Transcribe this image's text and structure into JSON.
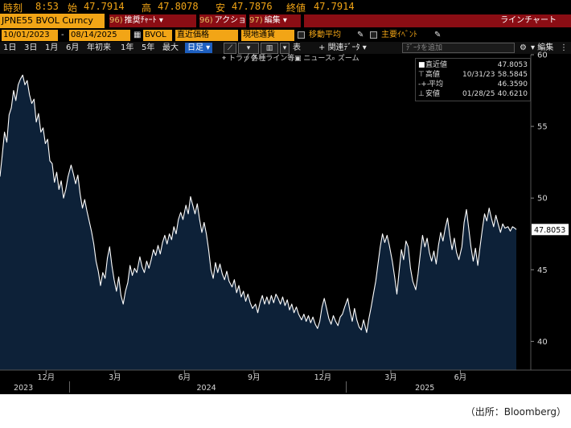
{
  "header": {
    "time_label": "時刻",
    "time_value": "8:53",
    "open_label": "始",
    "open_value": "47.7914",
    "high_label": "高",
    "high_value": "47.8078",
    "low_label": "安",
    "low_value": "47.7876",
    "close_label": "終値",
    "close_value": "47.7914"
  },
  "toolbar": {
    "ticker": "JPNE55 BVOL Curncy",
    "menu1_num": "96)",
    "menu1_label": "推奨ﾁｬｰﾄ",
    "menu2_num": "96)",
    "menu2_label": "アクション",
    "menu3_num": "97)",
    "menu3_label": "編集",
    "chart_type": "ラインチャート"
  },
  "params": {
    "start_date": "10/01/2023",
    "end_date": "08/14/2025",
    "security": "BVOL",
    "price_field": "直近価格",
    "currency": "現地通貨",
    "moving_avg": "移動平均",
    "events": "主要ｲﾍﾞﾝﾄ"
  },
  "periods": {
    "items": [
      "1日",
      "3日",
      "1月",
      "6月",
      "年初来",
      "1年",
      "5年",
      "最大"
    ],
    "frequency": "日足",
    "table_label": "表",
    "related_data": "関連ﾃﾞｰﾀ",
    "add_data": "ﾃﾞｰﾀを追加",
    "edit": "編集"
  },
  "subtools": {
    "track": "トラック",
    "lines": "各種ライン等",
    "news": "ニュース",
    "zoom": "ズーム"
  },
  "legend": {
    "last_label": "直近値",
    "last_value": "47.8053",
    "high_label": "高値",
    "high_date": "10/31/23",
    "high_value": "58.5845",
    "avg_label": "平均",
    "avg_value": "46.3590",
    "low_label": "安値",
    "low_date": "01/28/25",
    "low_value": "40.6210"
  },
  "source": "（出所：Bloomberg）",
  "colors": {
    "background": "#000000",
    "fill": "#0d2138",
    "line": "#ffffff",
    "accent": "#f2a516",
    "menu": "#8b0d14"
  },
  "chart_data": {
    "type": "area",
    "title": "",
    "xlabel": "",
    "ylabel": "",
    "ylim": [
      38,
      60
    ],
    "yticks": [
      40,
      45,
      50,
      55,
      60
    ],
    "last_value_label": "47.8053",
    "x_month_labels": [
      "12月",
      "3月",
      "6月",
      "9月",
      "12月",
      "3月",
      "6月"
    ],
    "x_month_dates": [
      "2023-12-01",
      "2024-03-01",
      "2024-06-01",
      "2024-09-01",
      "2024-12-01",
      "2025-03-01",
      "2025-06-01"
    ],
    "x_year_labels": [
      "2023",
      "2024",
      "2025"
    ],
    "x_year_dates": [
      "2023-11-01",
      "2024-06-30",
      "2025-04-15"
    ],
    "x_start": "2023-10-01",
    "x_end": "2025-08-14",
    "grid": false,
    "series": [
      {
        "values": [
          [
            "2023-10-01",
            51.5
          ],
          [
            "2023-10-04",
            53.0
          ],
          [
            "2023-10-07",
            54.6
          ],
          [
            "2023-10-10",
            53.9
          ],
          [
            "2023-10-13",
            55.8
          ],
          [
            "2023-10-16",
            56.3
          ],
          [
            "2023-10-19",
            57.5
          ],
          [
            "2023-10-22",
            56.8
          ],
          [
            "2023-10-25",
            57.9
          ],
          [
            "2023-10-28",
            58.3
          ],
          [
            "2023-10-31",
            58.58
          ],
          [
            "2023-11-03",
            57.9
          ],
          [
            "2023-11-06",
            58.2
          ],
          [
            "2023-11-09",
            57.2
          ],
          [
            "2023-11-12",
            56.6
          ],
          [
            "2023-11-15",
            56.9
          ],
          [
            "2023-11-18",
            55.3
          ],
          [
            "2023-11-21",
            55.9
          ],
          [
            "2023-11-24",
            54.6
          ],
          [
            "2023-11-27",
            54.9
          ],
          [
            "2023-11-30",
            53.8
          ],
          [
            "2023-12-03",
            54.1
          ],
          [
            "2023-12-06",
            52.6
          ],
          [
            "2023-12-09",
            52.4
          ],
          [
            "2023-12-12",
            51.1
          ],
          [
            "2023-12-15",
            51.8
          ],
          [
            "2023-12-18",
            50.6
          ],
          [
            "2023-12-21",
            51.2
          ],
          [
            "2023-12-24",
            50.0
          ],
          [
            "2023-12-27",
            50.6
          ],
          [
            "2023-12-30",
            51.5
          ],
          [
            "2024-01-03",
            52.3
          ],
          [
            "2024-01-06",
            51.7
          ],
          [
            "2024-01-09",
            51.0
          ],
          [
            "2024-01-12",
            51.6
          ],
          [
            "2024-01-15",
            50.3
          ],
          [
            "2024-01-18",
            49.3
          ],
          [
            "2024-01-21",
            49.9
          ],
          [
            "2024-01-24",
            49.1
          ],
          [
            "2024-01-27",
            48.4
          ],
          [
            "2024-01-30",
            47.7
          ],
          [
            "2024-02-02",
            46.8
          ],
          [
            "2024-02-05",
            45.6
          ],
          [
            "2024-02-08",
            44.9
          ],
          [
            "2024-02-11",
            43.9
          ],
          [
            "2024-02-14",
            44.8
          ],
          [
            "2024-02-17",
            44.4
          ],
          [
            "2024-02-20",
            45.8
          ],
          [
            "2024-02-23",
            46.6
          ],
          [
            "2024-02-26",
            45.3
          ],
          [
            "2024-02-29",
            44.3
          ],
          [
            "2024-03-03",
            43.5
          ],
          [
            "2024-03-06",
            44.5
          ],
          [
            "2024-03-09",
            43.2
          ],
          [
            "2024-03-12",
            42.6
          ],
          [
            "2024-03-15",
            43.5
          ],
          [
            "2024-03-18",
            44.1
          ],
          [
            "2024-03-21",
            45.3
          ],
          [
            "2024-03-24",
            44.6
          ],
          [
            "2024-03-27",
            45.1
          ],
          [
            "2024-03-30",
            44.8
          ],
          [
            "2024-04-03",
            45.9
          ],
          [
            "2024-04-06",
            45.2
          ],
          [
            "2024-04-09",
            44.8
          ],
          [
            "2024-04-12",
            45.6
          ],
          [
            "2024-04-15",
            45.1
          ],
          [
            "2024-04-18",
            45.7
          ],
          [
            "2024-04-21",
            46.4
          ],
          [
            "2024-04-24",
            46.0
          ],
          [
            "2024-04-27",
            46.7
          ],
          [
            "2024-04-30",
            46.1
          ],
          [
            "2024-05-03",
            46.9
          ],
          [
            "2024-05-06",
            47.4
          ],
          [
            "2024-05-09",
            46.8
          ],
          [
            "2024-05-12",
            47.5
          ],
          [
            "2024-05-15",
            47.1
          ],
          [
            "2024-05-18",
            48.0
          ],
          [
            "2024-05-21",
            47.5
          ],
          [
            "2024-05-24",
            48.5
          ],
          [
            "2024-05-27",
            49.0
          ],
          [
            "2024-05-30",
            48.5
          ],
          [
            "2024-06-03",
            49.5
          ],
          [
            "2024-06-06",
            48.9
          ],
          [
            "2024-06-09",
            50.1
          ],
          [
            "2024-06-12",
            49.5
          ],
          [
            "2024-06-15",
            48.9
          ],
          [
            "2024-06-18",
            49.6
          ],
          [
            "2024-06-21",
            48.5
          ],
          [
            "2024-06-24",
            47.6
          ],
          [
            "2024-06-27",
            48.3
          ],
          [
            "2024-06-30",
            47.5
          ],
          [
            "2024-07-03",
            46.4
          ],
          [
            "2024-07-06",
            45.0
          ],
          [
            "2024-07-09",
            44.4
          ],
          [
            "2024-07-12",
            45.5
          ],
          [
            "2024-07-15",
            44.8
          ],
          [
            "2024-07-18",
            45.4
          ],
          [
            "2024-07-21",
            44.7
          ],
          [
            "2024-07-24",
            44.3
          ],
          [
            "2024-07-27",
            44.9
          ],
          [
            "2024-07-30",
            44.2
          ],
          [
            "2024-08-03",
            43.8
          ],
          [
            "2024-08-06",
            44.3
          ],
          [
            "2024-08-09",
            43.4
          ],
          [
            "2024-08-12",
            43.9
          ],
          [
            "2024-08-15",
            43.1
          ],
          [
            "2024-08-18",
            43.5
          ],
          [
            "2024-08-21",
            42.8
          ],
          [
            "2024-08-24",
            43.3
          ],
          [
            "2024-08-27",
            42.7
          ],
          [
            "2024-08-30",
            42.3
          ],
          [
            "2024-09-03",
            42.6
          ],
          [
            "2024-09-06",
            42.0
          ],
          [
            "2024-09-09",
            42.7
          ],
          [
            "2024-09-12",
            43.2
          ],
          [
            "2024-09-15",
            42.6
          ],
          [
            "2024-09-18",
            43.1
          ],
          [
            "2024-09-21",
            42.6
          ],
          [
            "2024-09-24",
            43.2
          ],
          [
            "2024-09-27",
            42.7
          ],
          [
            "2024-09-30",
            43.3
          ],
          [
            "2024-10-03",
            43.0
          ],
          [
            "2024-10-06",
            42.6
          ],
          [
            "2024-10-09",
            43.1
          ],
          [
            "2024-10-12",
            42.5
          ],
          [
            "2024-10-15",
            42.9
          ],
          [
            "2024-10-18",
            42.2
          ],
          [
            "2024-10-21",
            42.6
          ],
          [
            "2024-10-24",
            42.0
          ],
          [
            "2024-10-27",
            42.4
          ],
          [
            "2024-10-30",
            41.9
          ],
          [
            "2024-11-03",
            41.5
          ],
          [
            "2024-11-06",
            41.9
          ],
          [
            "2024-11-09",
            41.4
          ],
          [
            "2024-11-12",
            41.8
          ],
          [
            "2024-11-15",
            41.3
          ],
          [
            "2024-11-18",
            41.7
          ],
          [
            "2024-11-21",
            41.2
          ],
          [
            "2024-11-24",
            40.9
          ],
          [
            "2024-11-27",
            41.4
          ],
          [
            "2024-11-30",
            42.4
          ],
          [
            "2024-12-03",
            43.0
          ],
          [
            "2024-12-06",
            42.3
          ],
          [
            "2024-12-09",
            41.6
          ],
          [
            "2024-12-12",
            41.2
          ],
          [
            "2024-12-15",
            41.8
          ],
          [
            "2024-12-18",
            41.4
          ],
          [
            "2024-12-21",
            41.1
          ],
          [
            "2024-12-24",
            41.7
          ],
          [
            "2024-12-27",
            41.9
          ],
          [
            "2024-12-30",
            42.4
          ],
          [
            "2025-01-03",
            43.0
          ],
          [
            "2025-01-06",
            42.1
          ],
          [
            "2025-01-09",
            41.4
          ],
          [
            "2025-01-12",
            42.3
          ],
          [
            "2025-01-15",
            41.5
          ],
          [
            "2025-01-18",
            41.0
          ],
          [
            "2025-01-21",
            40.8
          ],
          [
            "2025-01-24",
            41.5
          ],
          [
            "2025-01-28",
            40.62
          ],
          [
            "2025-01-31",
            41.6
          ],
          [
            "2025-02-03",
            42.4
          ],
          [
            "2025-02-06",
            43.3
          ],
          [
            "2025-02-09",
            44.2
          ],
          [
            "2025-02-12",
            45.4
          ],
          [
            "2025-02-15",
            46.6
          ],
          [
            "2025-02-18",
            47.5
          ],
          [
            "2025-02-21",
            46.9
          ],
          [
            "2025-02-24",
            47.4
          ],
          [
            "2025-02-27",
            46.7
          ],
          [
            "2025-03-03",
            45.6
          ],
          [
            "2025-03-06",
            44.5
          ],
          [
            "2025-03-09",
            43.3
          ],
          [
            "2025-03-12",
            44.9
          ],
          [
            "2025-03-15",
            46.4
          ],
          [
            "2025-03-18",
            45.7
          ],
          [
            "2025-03-21",
            47.0
          ],
          [
            "2025-03-24",
            46.6
          ],
          [
            "2025-03-27",
            45.1
          ],
          [
            "2025-03-30",
            44.2
          ],
          [
            "2025-04-03",
            43.6
          ],
          [
            "2025-04-06",
            44.7
          ],
          [
            "2025-04-09",
            46.1
          ],
          [
            "2025-04-12",
            47.4
          ],
          [
            "2025-04-15",
            46.6
          ],
          [
            "2025-04-18",
            47.2
          ],
          [
            "2025-04-21",
            46.2
          ],
          [
            "2025-04-24",
            45.6
          ],
          [
            "2025-04-27",
            46.3
          ],
          [
            "2025-04-30",
            45.4
          ],
          [
            "2025-05-03",
            46.7
          ],
          [
            "2025-05-06",
            47.6
          ],
          [
            "2025-05-09",
            47.0
          ],
          [
            "2025-05-12",
            47.9
          ],
          [
            "2025-05-15",
            48.6
          ],
          [
            "2025-05-18",
            47.4
          ],
          [
            "2025-05-21",
            46.4
          ],
          [
            "2025-05-24",
            47.2
          ],
          [
            "2025-05-27",
            46.2
          ],
          [
            "2025-05-30",
            45.7
          ],
          [
            "2025-06-03",
            46.6
          ],
          [
            "2025-06-06",
            48.3
          ],
          [
            "2025-06-09",
            49.2
          ],
          [
            "2025-06-12",
            47.9
          ],
          [
            "2025-06-15",
            46.6
          ],
          [
            "2025-06-18",
            45.6
          ],
          [
            "2025-06-21",
            46.5
          ],
          [
            "2025-06-24",
            45.3
          ],
          [
            "2025-06-27",
            46.6
          ],
          [
            "2025-06-30",
            47.8
          ],
          [
            "2025-07-03",
            48.9
          ],
          [
            "2025-07-06",
            48.4
          ],
          [
            "2025-07-09",
            49.3
          ],
          [
            "2025-07-12",
            48.6
          ],
          [
            "2025-07-15",
            48.0
          ],
          [
            "2025-07-18",
            48.8
          ],
          [
            "2025-07-21",
            48.2
          ],
          [
            "2025-07-24",
            47.6
          ],
          [
            "2025-07-27",
            48.2
          ],
          [
            "2025-07-30",
            47.9
          ],
          [
            "2025-08-03",
            48.0
          ],
          [
            "2025-08-06",
            47.7
          ],
          [
            "2025-08-09",
            48.0
          ],
          [
            "2025-08-12",
            47.9
          ],
          [
            "2025-08-14",
            47.8053
          ]
        ]
      }
    ]
  }
}
